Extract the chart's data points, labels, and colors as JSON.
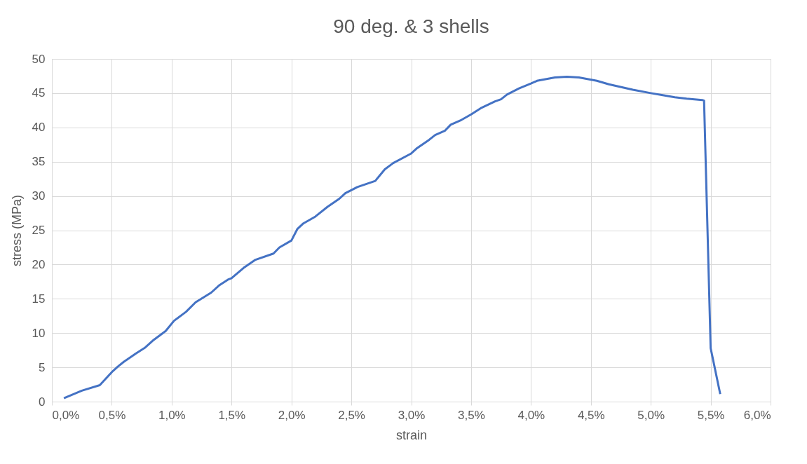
{
  "chart_data": {
    "type": "line",
    "title": "90 deg. & 3 shells",
    "xlabel": "strain",
    "ylabel": "stress (MPa)",
    "x": [
      0.1,
      0.25,
      0.4,
      0.5,
      0.55,
      0.6,
      0.7,
      0.78,
      0.85,
      0.95,
      1.02,
      1.12,
      1.2,
      1.33,
      1.4,
      1.47,
      1.5,
      1.6,
      1.7,
      1.85,
      1.9,
      2.0,
      2.05,
      2.1,
      2.2,
      2.3,
      2.4,
      2.45,
      2.55,
      2.7,
      2.78,
      2.85,
      3.0,
      3.05,
      3.15,
      3.2,
      3.28,
      3.33,
      3.42,
      3.5,
      3.58,
      3.7,
      3.75,
      3.8,
      3.9,
      4.0,
      4.05,
      4.2,
      4.3,
      4.4,
      4.55,
      4.65,
      4.85,
      5.0,
      5.1,
      5.2,
      5.3,
      5.43,
      5.445,
      5.5,
      5.58
    ],
    "series": [
      {
        "color": "#4472c4",
        "values": [
          0.5,
          1.6,
          2.4,
          4.3,
          5.1,
          5.8,
          7.0,
          7.9,
          9.0,
          10.3,
          11.8,
          13.1,
          14.5,
          15.9,
          17.0,
          17.8,
          18.0,
          19.5,
          20.7,
          21.6,
          22.5,
          23.5,
          25.2,
          26.0,
          27.0,
          28.4,
          29.6,
          30.4,
          31.3,
          32.2,
          33.9,
          34.8,
          36.2,
          37.0,
          38.2,
          38.9,
          39.5,
          40.4,
          41.1,
          41.9,
          42.8,
          43.8,
          44.1,
          44.8,
          45.7,
          46.4,
          46.8,
          47.3,
          47.4,
          47.3,
          46.8,
          46.3,
          45.5,
          45.0,
          44.7,
          44.4,
          44.2,
          44.0,
          43.9,
          7.8,
          1.1
        ]
      }
    ],
    "xlim": [
      0,
      6
    ],
    "xticks": [
      {
        "value": 0,
        "label": "0,0%"
      },
      {
        "value": 0.5,
        "label": "0,5%"
      },
      {
        "value": 1,
        "label": "1,0%"
      },
      {
        "value": 1.5,
        "label": "1,5%"
      },
      {
        "value": 2,
        "label": "2,0%"
      },
      {
        "value": 2.5,
        "label": "2,5%"
      },
      {
        "value": 3,
        "label": "3,0%"
      },
      {
        "value": 3.5,
        "label": "3,5%"
      },
      {
        "value": 4,
        "label": "4,0%"
      },
      {
        "value": 4.5,
        "label": "4,5%"
      },
      {
        "value": 5,
        "label": "5,0%"
      },
      {
        "value": 5.5,
        "label": "5,5%"
      },
      {
        "value": 6,
        "label": "6,0%"
      }
    ],
    "ylim": [
      0,
      50
    ],
    "yticks": [
      0,
      5,
      10,
      15,
      20,
      25,
      30,
      35,
      40,
      45,
      50
    ],
    "grid": true,
    "marker": "none",
    "line_style": "solid"
  }
}
